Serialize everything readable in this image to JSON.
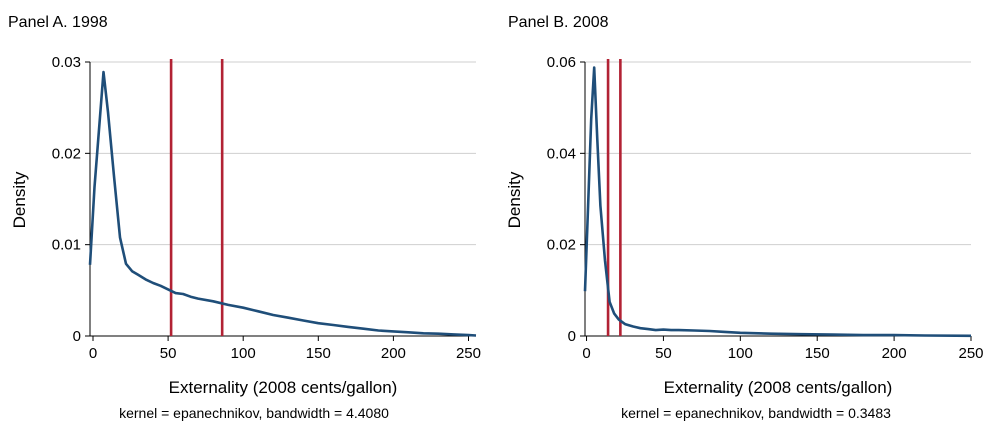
{
  "chart_data": [
    {
      "type": "line",
      "title": "Panel A. 1998",
      "xlabel": "Externality (2008 cents/gallon)",
      "ylabel": "Density",
      "note": "kernel = epanechnikov, bandwidth = 4.4080",
      "xlim": [
        -2,
        255
      ],
      "ylim": [
        0,
        0.03
      ],
      "xticks": [
        0,
        50,
        100,
        150,
        200,
        250
      ],
      "yticks": [
        0,
        0.01,
        0.02,
        0.03
      ],
      "ytick_labels": [
        "0",
        "0.01",
        "0.02",
        "0.03"
      ],
      "grid": true,
      "x": [
        -2,
        1,
        4,
        7,
        10,
        14,
        18,
        22,
        26,
        30,
        35,
        40,
        45,
        50,
        55,
        60,
        65,
        70,
        80,
        90,
        100,
        110,
        120,
        130,
        140,
        150,
        160,
        170,
        180,
        190,
        200,
        210,
        220,
        230,
        240,
        250,
        255
      ],
      "y": [
        0.0078,
        0.0163,
        0.0226,
        0.0289,
        0.0245,
        0.0175,
        0.0108,
        0.0079,
        0.0071,
        0.0067,
        0.0062,
        0.0058,
        0.0055,
        0.0051,
        0.0047,
        0.0046,
        0.0043,
        0.0041,
        0.0038,
        0.0034,
        0.0031,
        0.0027,
        0.0023,
        0.002,
        0.0017,
        0.0014,
        0.0012,
        0.001,
        0.0008,
        0.0006,
        0.0005,
        0.0004,
        0.0003,
        0.00025,
        0.00018,
        0.0001,
        5e-05
      ],
      "reference_lines_x": [
        52,
        86
      ]
    },
    {
      "type": "line",
      "title": "Panel B. 2008",
      "xlabel": "Externality (2008 cents/gallon)",
      "ylabel": "Density",
      "note": "kernel = epanechnikov, bandwidth = 0.3483",
      "xlim": [
        -1,
        250
      ],
      "ylim": [
        0,
        0.06
      ],
      "xticks": [
        0,
        50,
        100,
        150,
        200,
        250
      ],
      "yticks": [
        0,
        0.02,
        0.04,
        0.06
      ],
      "ytick_labels": [
        "0",
        "0.02",
        "0.04",
        "0.06"
      ],
      "grid": true,
      "x": [
        -1,
        1,
        3,
        5,
        7,
        9,
        12,
        15,
        18,
        21,
        25,
        30,
        35,
        40,
        45,
        50,
        55,
        60,
        70,
        80,
        90,
        100,
        120,
        140,
        160,
        180,
        200,
        220,
        250
      ],
      "y": [
        0.0098,
        0.0285,
        0.0475,
        0.0588,
        0.043,
        0.0285,
        0.0165,
        0.0075,
        0.0049,
        0.0036,
        0.0026,
        0.0021,
        0.0017,
        0.0015,
        0.0013,
        0.0014,
        0.0013,
        0.0013,
        0.0012,
        0.0011,
        0.0009,
        0.0007,
        0.0005,
        0.0004,
        0.0003,
        0.0002,
        0.0002,
        0.0001,
        5e-05
      ],
      "reference_lines_x": [
        14,
        22
      ]
    }
  ]
}
